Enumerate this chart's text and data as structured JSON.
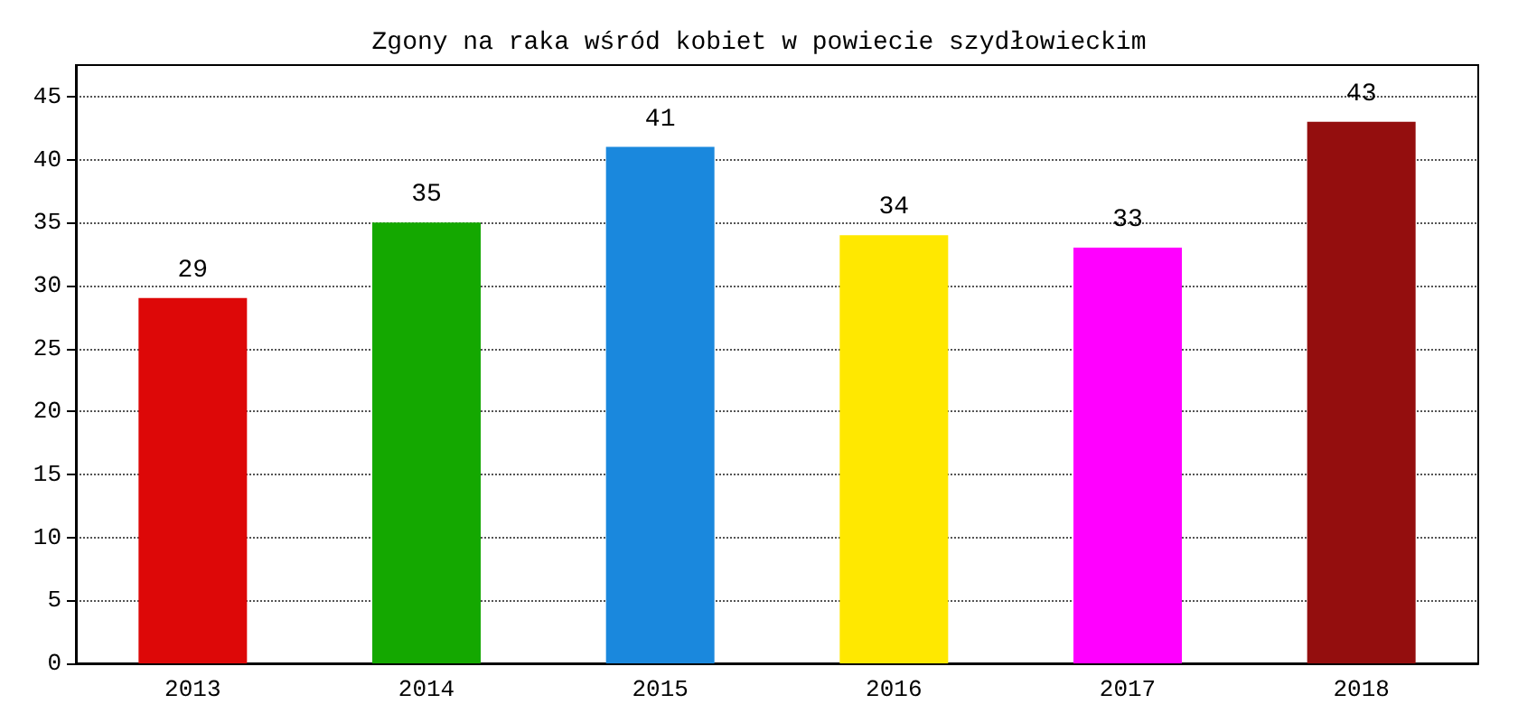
{
  "chart_data": {
    "type": "bar",
    "title": "Zgony na raka wśród kobiet w powiecie szydłowieckim",
    "categories": [
      "2013",
      "2014",
      "2015",
      "2016",
      "2017",
      "2018"
    ],
    "values": [
      29,
      35,
      41,
      34,
      33,
      43
    ],
    "colors": [
      "#dd0808",
      "#14a800",
      "#1a88dd",
      "#ffe800",
      "#ff00ff",
      "#940e0e"
    ],
    "ylim": [
      0,
      47.5
    ],
    "yticks": [
      0,
      5,
      10,
      15,
      20,
      25,
      30,
      35,
      40,
      45
    ],
    "grid": "y",
    "data_labels": true
  }
}
